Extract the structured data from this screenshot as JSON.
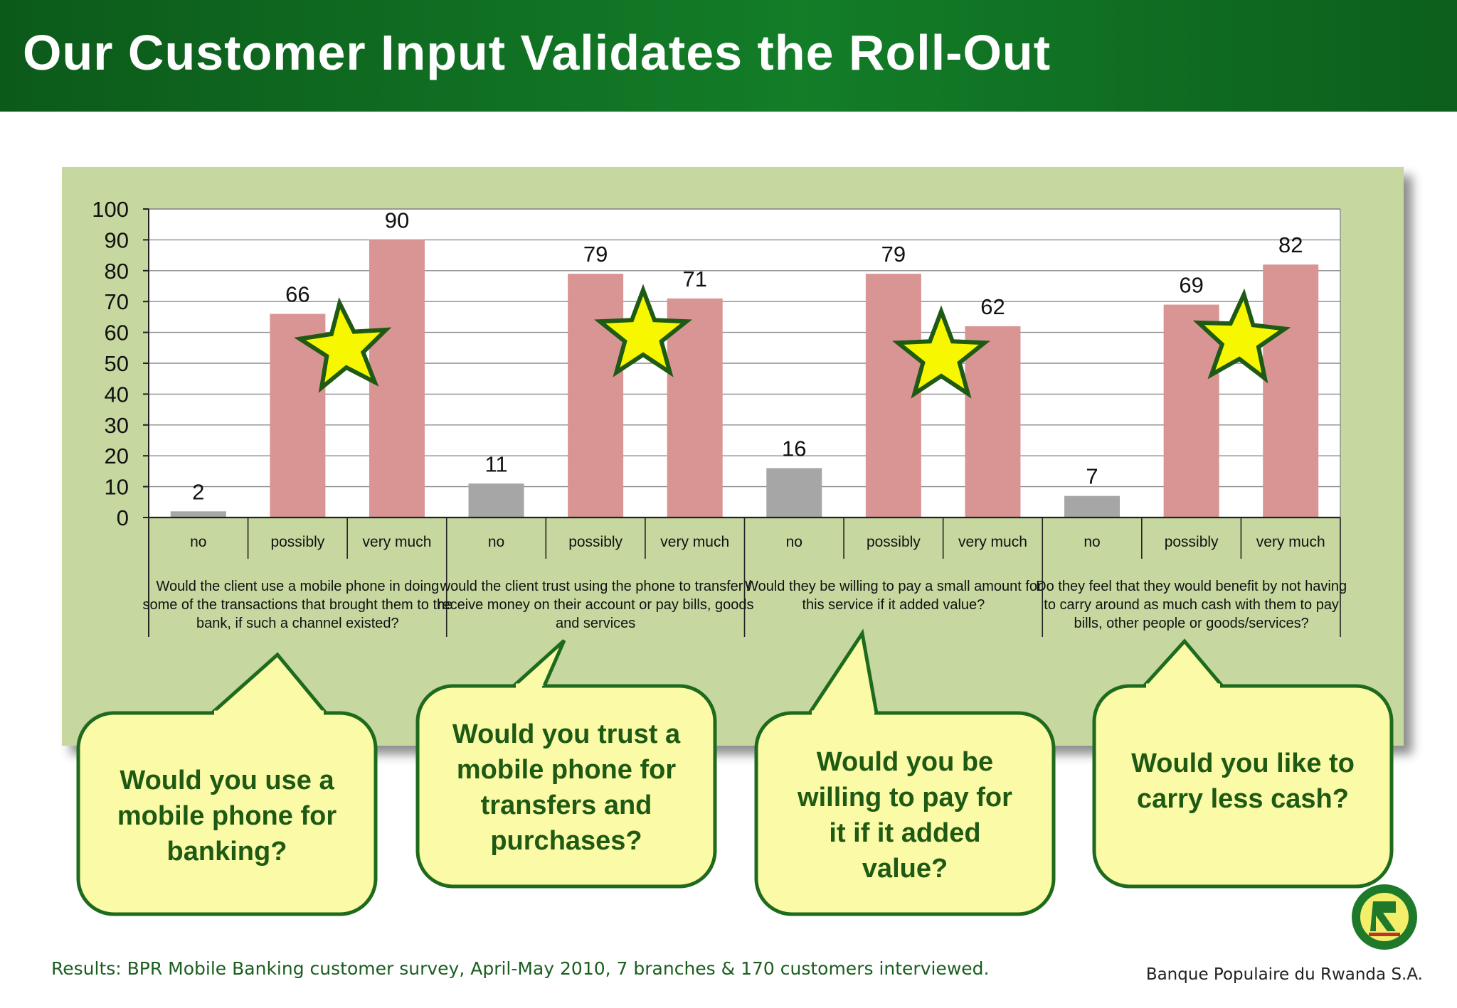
{
  "title": "Our Customer Input Validates the Roll-Out",
  "chart_data": {
    "type": "bar",
    "ylim": [
      0,
      100
    ],
    "yticks": [
      "0",
      "10",
      "20",
      "30",
      "40",
      "50",
      "60",
      "70",
      "80",
      "90",
      "100"
    ],
    "grid": true,
    "groups": [
      {
        "question": [
          "Would the client use a mobile phone in doing",
          "some of the transactions that brought them to the",
          "bank, if such a channel existed?"
        ],
        "bars": [
          {
            "category": "no",
            "value": 2,
            "label": "2"
          },
          {
            "category": "possibly",
            "value": 66,
            "label": "66"
          },
          {
            "category": "very much",
            "value": 90,
            "label": "90"
          }
        ]
      },
      {
        "question": [
          "would the client trust using the phone to transfer /",
          "receive money on their account or pay bills, goods",
          "and services"
        ],
        "bars": [
          {
            "category": "no",
            "value": 11,
            "label": "11"
          },
          {
            "category": "possibly",
            "value": 79,
            "label": "79"
          },
          {
            "category": "very much",
            "value": 71,
            "label": "71"
          }
        ]
      },
      {
        "question": [
          "Would they be willing to pay a small amount for",
          "this service if it added value?"
        ],
        "bars": [
          {
            "category": "no",
            "value": 16,
            "label": "16"
          },
          {
            "category": "possibly",
            "value": 79,
            "label": "79"
          },
          {
            "category": "very much",
            "value": 62,
            "label": "62"
          }
        ]
      },
      {
        "question": [
          "Do they feel that they would benefit by not having",
          "to  carry around as much cash with them to pay",
          "bills, other people or goods/services?"
        ],
        "bars": [
          {
            "category": "no",
            "value": 7,
            "label": "7"
          },
          {
            "category": "possibly",
            "value": 69,
            "label": "69"
          },
          {
            "category": "very much",
            "value": 82,
            "label": "82"
          }
        ]
      }
    ],
    "colors": {
      "no": "#a6a6a6",
      "possibly": "#d99594",
      "very much": "#d99594"
    },
    "star_icon": "star-icon"
  },
  "callouts": [
    {
      "lines": [
        "Would you use a",
        "mobile phone for",
        "banking?"
      ]
    },
    {
      "lines": [
        "Would you trust a",
        "mobile phone for",
        "transfers and",
        "purchases?"
      ]
    },
    {
      "lines": [
        "Would you be",
        "willing to pay for",
        "it if it added",
        "value?"
      ]
    },
    {
      "lines": [
        "Would you like to",
        "carry less cash?"
      ]
    }
  ],
  "colors": {
    "header": "#137d28",
    "panel": "#c6d8a0",
    "callout_fill": "#fbfaa6",
    "callout_border": "#1e6b1e",
    "callout_text": "#1e5a14",
    "star_fill": "#f7f700",
    "star_stroke": "#1e5a14"
  },
  "logo_icon": "bpr-logo-icon",
  "footer": {
    "source": "Results: BPR Mobile Banking customer survey, April-May 2010, 7 branches & 170 customers interviewed.",
    "bank": "Banque Populaire du Rwanda S.A."
  }
}
